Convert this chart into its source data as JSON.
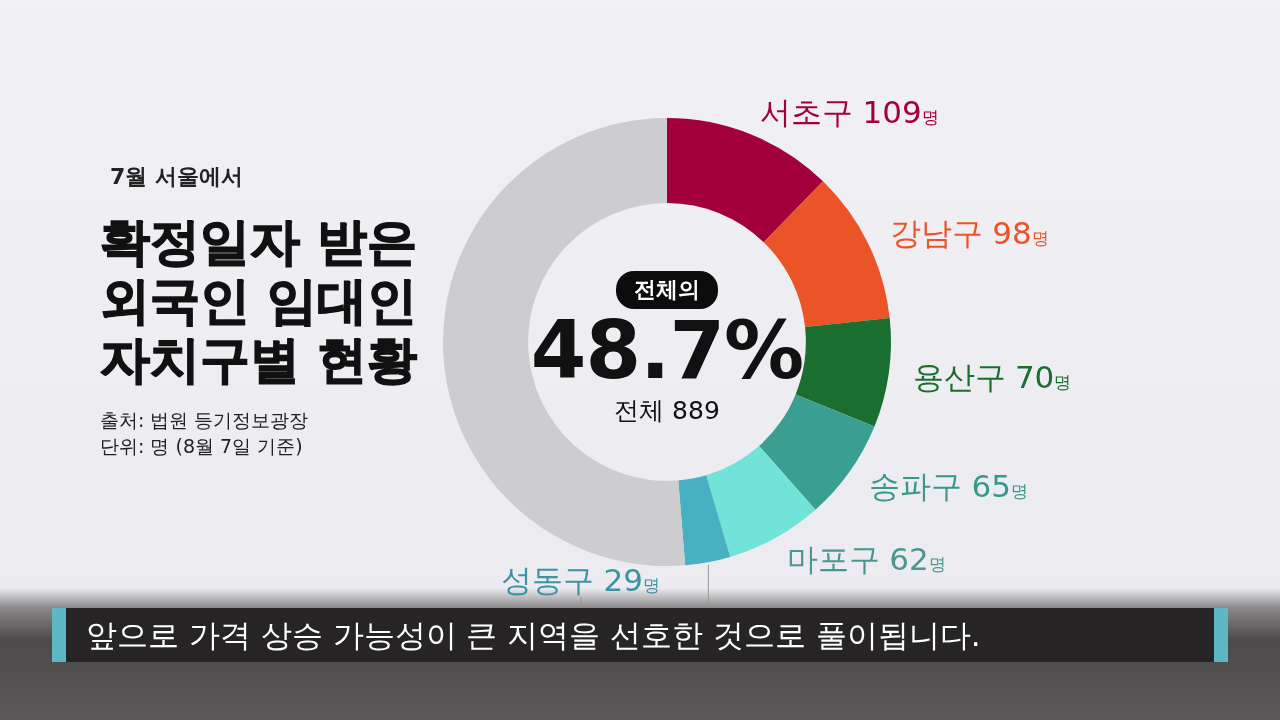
{
  "chart_data": {
    "type": "donut",
    "title": "확정일자 받은 외국인 임대인 자치구별 현황",
    "subtitle": "7월 서울에서",
    "categories": [
      "서초구",
      "강남구",
      "용산구",
      "송파구",
      "마포구",
      "성동구",
      null
    ],
    "values": [
      109,
      98,
      70,
      65,
      62,
      29,
      456
    ],
    "colors": [
      "#a3003b",
      "#ea5426",
      "#1a6e30",
      "#3a9e91",
      "#72e3d8",
      "#47b0c2",
      "#cdcccf"
    ],
    "value_labels": [
      "109명",
      "98명",
      "70명",
      "65명",
      "62명",
      "29명",
      null
    ],
    "annotations": [
      "전체의",
      "48.7%",
      "전체 889",
      "출처: 법원 등기정보광장",
      "단위: 명 (8월 7일 기준)",
      "앞으로 가격 상승 가능성이 큰 지역을 선호한 것으로 풀이됩니다."
    ]
  }
}
